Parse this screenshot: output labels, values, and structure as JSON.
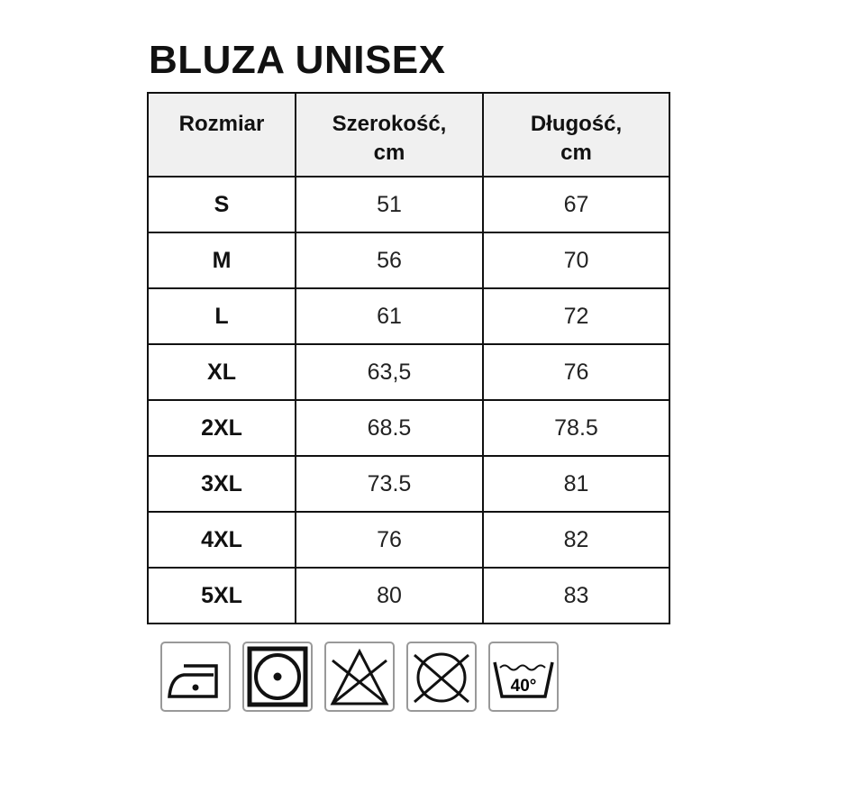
{
  "title": "BLUZA UNISEX",
  "headers": [
    {
      "line1": "Rozmiar",
      "line2": ""
    },
    {
      "line1": "Szerokość,",
      "line2": "cm"
    },
    {
      "line1": "Długość,",
      "line2": "cm"
    }
  ],
  "rows": [
    [
      "S",
      "51",
      "67"
    ],
    [
      "M",
      "56",
      "70"
    ],
    [
      "L",
      "61",
      "72"
    ],
    [
      "XL",
      "63,5",
      "76"
    ],
    [
      "2XL",
      "68.5",
      "78.5"
    ],
    [
      "3XL",
      "73.5",
      "81"
    ],
    [
      "4XL",
      "76",
      "82"
    ],
    [
      "5XL",
      "80",
      "83"
    ]
  ],
  "care_icons": [
    {
      "name": "iron-one-dot-icon"
    },
    {
      "name": "tumble-dry-low-icon"
    },
    {
      "name": "do-not-bleach-icon"
    },
    {
      "name": "do-not-dry-clean-icon"
    },
    {
      "name": "wash-40-icon",
      "label": "40°"
    }
  ]
}
